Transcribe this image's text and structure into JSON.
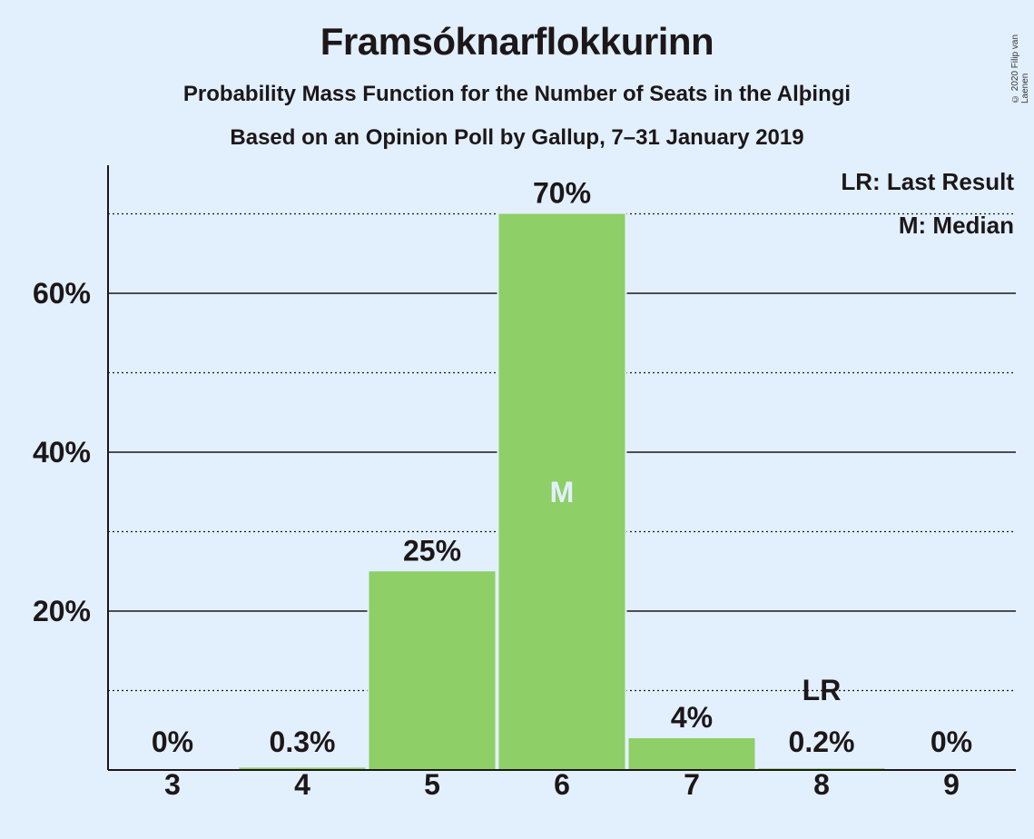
{
  "title": "Framsóknarflokkurinn",
  "subtitle": "Probability Mass Function for the Number of Seats in the Alþingi",
  "subtitle2": "Based on an Opinion Poll by Gallup, 7–31 January 2019",
  "copyright": "© 2020 Filip van Laenen",
  "legend": {
    "last_result": "LR: Last Result",
    "median": "M: Median"
  },
  "colors": {
    "background": "#e2f0fd",
    "bar": "#8fcf68",
    "text": "#1d1719"
  },
  "chart_data": {
    "type": "bar",
    "categories": [
      "3",
      "4",
      "5",
      "6",
      "7",
      "8",
      "9"
    ],
    "values": [
      0,
      0.3,
      25,
      70,
      4,
      0.2,
      0
    ],
    "value_labels": [
      "0%",
      "0.3%",
      "25%",
      "70%",
      "4%",
      "0.2%",
      "0%"
    ],
    "ylim": [
      0,
      76
    ],
    "yticks": [
      20,
      40,
      60
    ],
    "ytick_labels": [
      "20%",
      "40%",
      "60%"
    ],
    "minor_gridlines": [
      10,
      30,
      50,
      70
    ],
    "median_category": "6",
    "median_label": "M",
    "last_result_category": "8",
    "last_result_label": "LR"
  }
}
